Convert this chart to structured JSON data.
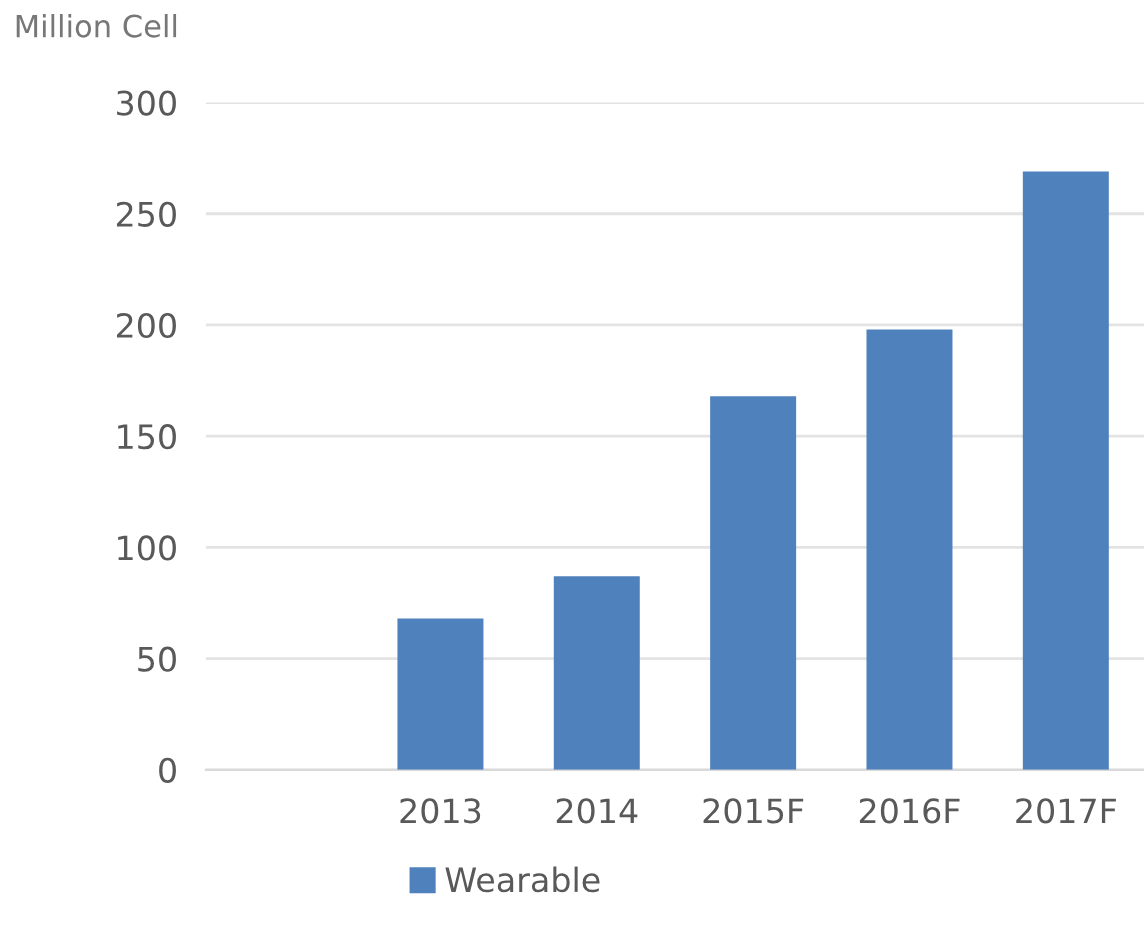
{
  "chart_data": {
    "type": "bar",
    "ylabel": "Million Cell",
    "categories": [
      null,
      "2013",
      "2014",
      "2015F",
      "2016F",
      "2017F"
    ],
    "series": [
      {
        "name": "Wearable",
        "color": "#4f81bd",
        "values": [
          null,
          68,
          87,
          168,
          198,
          269
        ]
      }
    ],
    "ylim": [
      0,
      300
    ],
    "yticks": [
      0,
      50,
      100,
      150,
      200,
      250,
      300
    ],
    "grid": "y",
    "legend": "bottom"
  }
}
